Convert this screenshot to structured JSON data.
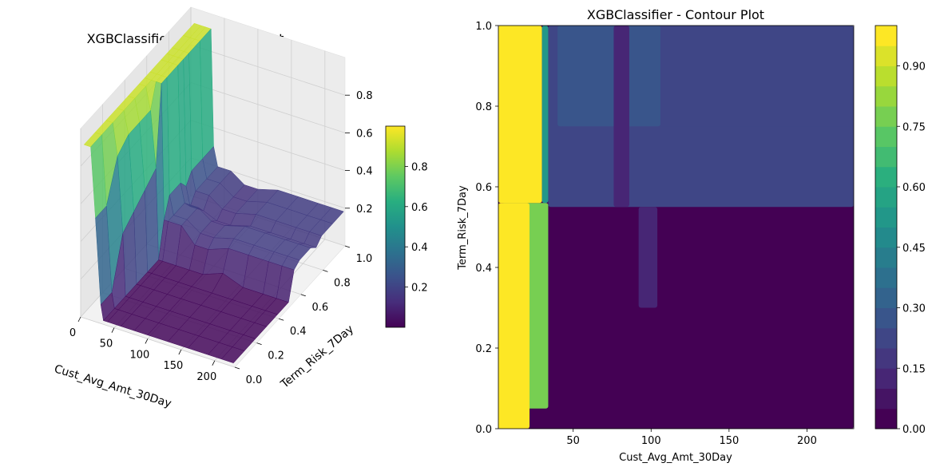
{
  "chart_data": [
    {
      "type": "surface3d",
      "title": "XGBClassifier - 3D Surface Plot",
      "xlabel": "Cust_Avg_Amt_30Day",
      "ylabel": "Term_Risk_7Day",
      "zlabel": "",
      "xlim": [
        0,
        230
      ],
      "ylim": [
        0,
        1.0
      ],
      "zlim": [
        0.0,
        1.0
      ],
      "xticks": [
        0,
        50,
        100,
        150,
        200
      ],
      "yticks": [
        0.0,
        0.2,
        0.4,
        0.6,
        0.8,
        1.0
      ],
      "zticks": [
        0.2,
        0.4,
        0.6,
        0.8
      ],
      "xtick_labels": [
        "0",
        "50",
        "100",
        "150",
        "200"
      ],
      "ytick_labels": [
        "0.0",
        "0.2",
        "0.4",
        "0.6",
        "0.8",
        "1.0"
      ],
      "ztick_labels": [
        "0.2",
        "0.4",
        "0.6",
        "0.8"
      ],
      "colormap": "viridis",
      "colorbar": {
        "range": [
          0.0,
          1.0
        ],
        "ticks": [
          0.2,
          0.4,
          0.6,
          0.8
        ],
        "tick_labels": [
          "0.2",
          "0.4",
          "0.6",
          "0.8"
        ]
      },
      "grid": true,
      "x_grid": [
        5,
        15,
        22,
        30,
        34,
        40,
        60,
        80,
        100,
        130,
        160,
        190,
        210,
        228
      ],
      "y_grid": [
        0.0,
        0.1,
        0.2,
        0.3,
        0.4,
        0.5,
        0.55,
        0.6,
        0.7,
        0.75,
        0.8,
        0.9,
        1.0
      ],
      "z": [
        [
          0.92,
          0.92,
          0.92,
          0.92,
          0.92,
          0.92,
          0.92,
          0.92,
          0.92,
          0.92,
          0.92,
          0.92,
          0.92
        ],
        [
          0.92,
          0.92,
          0.92,
          0.92,
          0.92,
          0.92,
          0.92,
          0.92,
          0.92,
          0.92,
          0.92,
          0.92,
          0.92
        ],
        [
          0.55,
          0.55,
          0.75,
          0.8,
          0.8,
          0.8,
          0.92,
          0.92,
          0.92,
          0.92,
          0.92,
          0.92,
          0.92
        ],
        [
          0.1,
          0.1,
          0.35,
          0.4,
          0.45,
          0.5,
          0.92,
          0.92,
          0.92,
          0.92,
          0.92,
          0.92,
          0.92
        ],
        [
          0.02,
          0.02,
          0.02,
          0.02,
          0.02,
          0.02,
          0.2,
          0.3,
          0.3,
          0.25,
          0.3,
          0.3,
          0.3
        ],
        [
          0.02,
          0.02,
          0.02,
          0.02,
          0.02,
          0.02,
          0.2,
          0.2,
          0.2,
          0.15,
          0.2,
          0.2,
          0.2
        ],
        [
          0.02,
          0.02,
          0.02,
          0.02,
          0.02,
          0.02,
          0.2,
          0.2,
          0.2,
          0.15,
          0.2,
          0.2,
          0.2
        ],
        [
          0.02,
          0.02,
          0.02,
          0.02,
          0.02,
          0.02,
          0.12,
          0.15,
          0.15,
          0.12,
          0.15,
          0.15,
          0.15
        ],
        [
          0.02,
          0.02,
          0.02,
          0.02,
          0.02,
          0.02,
          0.12,
          0.15,
          0.15,
          0.12,
          0.15,
          0.15,
          0.15
        ],
        [
          0.02,
          0.02,
          0.02,
          0.02,
          0.02,
          0.06,
          0.16,
          0.18,
          0.18,
          0.15,
          0.18,
          0.18,
          0.18
        ],
        [
          0.02,
          0.02,
          0.02,
          0.02,
          0.02,
          0.02,
          0.16,
          0.18,
          0.18,
          0.15,
          0.18,
          0.18,
          0.18
        ],
        [
          0.02,
          0.02,
          0.02,
          0.02,
          0.02,
          0.02,
          0.16,
          0.18,
          0.18,
          0.15,
          0.18,
          0.18,
          0.18
        ],
        [
          0.02,
          0.02,
          0.02,
          0.02,
          0.02,
          0.02,
          0.16,
          0.18,
          0.18,
          0.15,
          0.18,
          0.18,
          0.18
        ],
        [
          0.02,
          0.02,
          0.02,
          0.02,
          0.02,
          0.02,
          0.16,
          0.18,
          0.18,
          0.15,
          0.18,
          0.18,
          0.18
        ]
      ]
    },
    {
      "type": "contour",
      "title": "XGBClassifier - Contour Plot",
      "xlabel": "Cust_Avg_Amt_30Day",
      "ylabel": "Term_Risk_7Day",
      "xlim": [
        2,
        230
      ],
      "ylim": [
        0.0,
        1.0
      ],
      "xticks": [
        50,
        100,
        150,
        200
      ],
      "yticks": [
        0.0,
        0.2,
        0.4,
        0.6,
        0.8,
        1.0
      ],
      "xtick_labels": [
        "50",
        "100",
        "150",
        "200"
      ],
      "ytick_labels": [
        "0.0",
        "0.2",
        "0.4",
        "0.6",
        "0.8",
        "1.0"
      ],
      "colormap": "viridis",
      "levels": 20,
      "colorbar": {
        "range": [
          0.0,
          1.0
        ],
        "ticks": [
          0.0,
          0.15,
          0.3,
          0.45,
          0.6,
          0.75,
          0.9
        ],
        "tick_labels": [
          "0.00",
          "0.15",
          "0.30",
          "0.45",
          "0.60",
          "0.75",
          "0.90"
        ]
      },
      "regions": [
        {
          "x": [
            2,
            230
          ],
          "y": [
            0.0,
            1.0
          ],
          "value": 0.02
        },
        {
          "x": [
            34,
            230
          ],
          "y": [
            0.55,
            1.0
          ],
          "value": 0.2
        },
        {
          "x": [
            42,
            230
          ],
          "y": [
            0.75,
            1.0
          ],
          "value": 0.22
        },
        {
          "x": [
            40,
            106
          ],
          "y": [
            0.75,
            1.0
          ],
          "value": 0.28
        },
        {
          "x": [
            76,
            86
          ],
          "y": [
            0.55,
            1.0
          ],
          "value": 0.1
        },
        {
          "x": [
            92,
            104
          ],
          "y": [
            0.3,
            0.55
          ],
          "value": 0.1
        },
        {
          "x": [
            4,
            34
          ],
          "y": [
            0.05,
            0.56
          ],
          "value": 0.75
        },
        {
          "x": [
            2,
            30
          ],
          "y": [
            0.56,
            1.0
          ],
          "value": 0.98
        },
        {
          "x": [
            2,
            22
          ],
          "y": [
            0.0,
            0.56
          ],
          "value": 0.98
        },
        {
          "x": [
            30,
            34
          ],
          "y": [
            0.56,
            1.0
          ],
          "value": 0.5
        }
      ]
    }
  ]
}
